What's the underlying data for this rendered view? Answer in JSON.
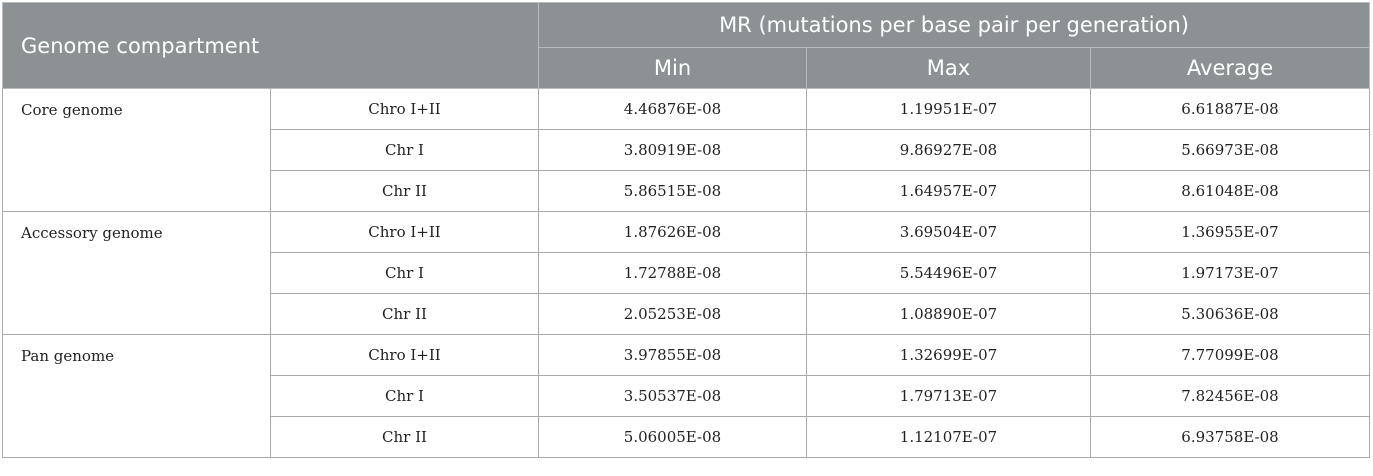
{
  "table": {
    "header": {
      "compartment_label": "Genome compartment",
      "mr_label": "MR (mutations per base pair per generation)",
      "min_label": "Min",
      "max_label": "Max",
      "average_label": "Average"
    },
    "groups": [
      {
        "name": "Core genome",
        "rows": [
          {
            "chromosome": "Chro I+II",
            "min": "4.46876E-08",
            "max": "1.19951E-07",
            "average": "6.61887E-08"
          },
          {
            "chromosome": "Chr I",
            "min": "3.80919E-08",
            "max": "9.86927E-08",
            "average": "5.66973E-08"
          },
          {
            "chromosome": "Chr II",
            "min": "5.86515E-08",
            "max": "1.64957E-07",
            "average": "8.61048E-08"
          }
        ]
      },
      {
        "name": "Accessory genome",
        "rows": [
          {
            "chromosome": "Chro I+II",
            "min": "1.87626E-08",
            "max": "3.69504E-07",
            "average": "1.36955E-07"
          },
          {
            "chromosome": "Chr I",
            "min": "1.72788E-08",
            "max": "5.54496E-07",
            "average": "1.97173E-07"
          },
          {
            "chromosome": "Chr II",
            "min": "2.05253E-08",
            "max": "1.08890E-07",
            "average": "5.30636E-08"
          }
        ]
      },
      {
        "name": "Pan genome",
        "rows": [
          {
            "chromosome": "Chro I+II",
            "min": "3.97855E-08",
            "max": "1.32699E-07",
            "average": "7.77099E-08"
          },
          {
            "chromosome": "Chr I",
            "min": "3.50537E-08",
            "max": "1.79713E-07",
            "average": "7.82456E-08"
          },
          {
            "chromosome": "Chr II",
            "min": "5.06005E-08",
            "max": "1.12107E-07",
            "average": "6.93758E-08"
          }
        ]
      }
    ],
    "colors": {
      "header_background": "#8c9293",
      "header_text": "#ffffff",
      "grid_line": "#a9a9a9"
    }
  }
}
